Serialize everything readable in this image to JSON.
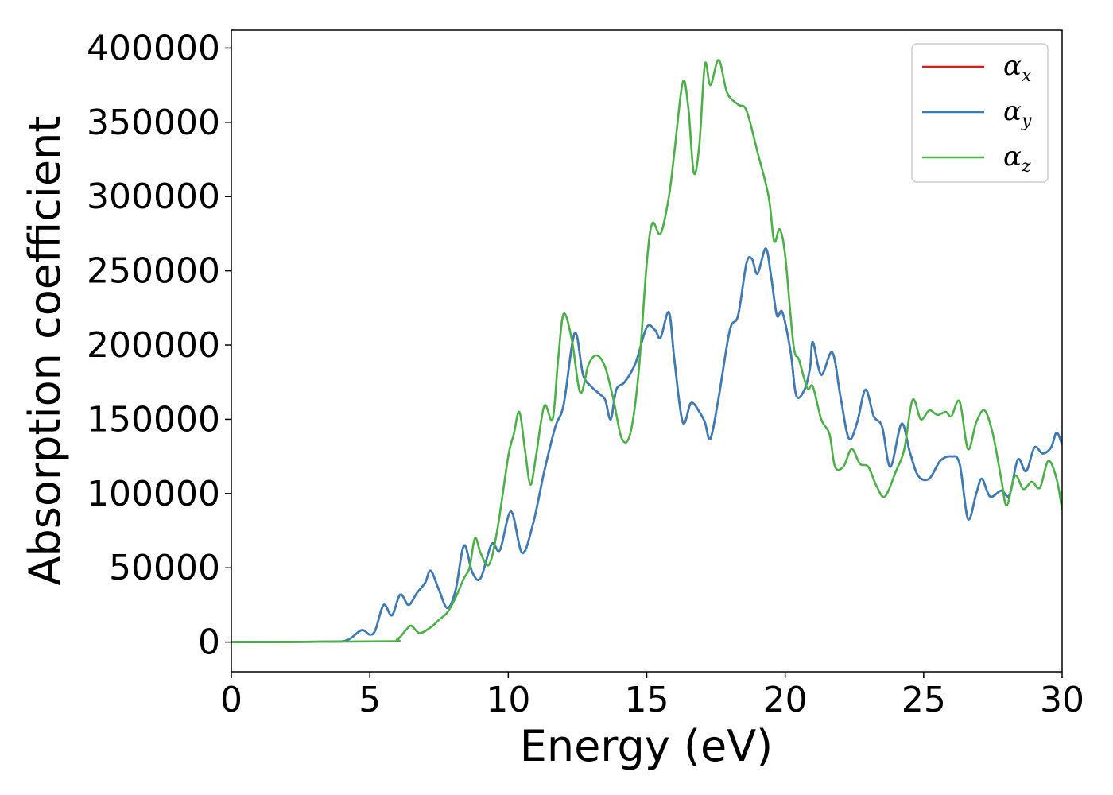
{
  "chart_data": {
    "type": "line",
    "title": "",
    "xlabel": "Energy (eV)",
    "ylabel": "Absorption coefficient",
    "xlim": [
      0,
      30
    ],
    "ylim": [
      -20000,
      412000
    ],
    "xticks": [
      0,
      5,
      10,
      15,
      20,
      25,
      30
    ],
    "yticks": [
      0,
      50000,
      100000,
      150000,
      200000,
      250000,
      300000,
      350000,
      400000
    ],
    "grid": false,
    "legend_position": "top-right",
    "series": [
      {
        "name": "α_x",
        "label_base": "α",
        "label_sub": "x",
        "color": "#e41a1c",
        "points": [
          [
            0,
            0
          ],
          [
            3.5,
            300
          ],
          [
            4.2,
            1500
          ],
          [
            4.7,
            8000
          ],
          [
            5.0,
            5000
          ],
          [
            5.2,
            8000
          ],
          [
            5.5,
            25000
          ],
          [
            5.8,
            18000
          ],
          [
            6.1,
            32000
          ],
          [
            6.4,
            25000
          ],
          [
            6.7,
            33000
          ],
          [
            7.0,
            40000
          ],
          [
            7.2,
            48000
          ],
          [
            7.5,
            35000
          ],
          [
            7.8,
            23000
          ],
          [
            8.1,
            35000
          ],
          [
            8.4,
            65000
          ],
          [
            8.7,
            47000
          ],
          [
            9.0,
            43000
          ],
          [
            9.4,
            66000
          ],
          [
            9.7,
            62000
          ],
          [
            10.1,
            88000
          ],
          [
            10.5,
            60000
          ],
          [
            10.9,
            80000
          ],
          [
            11.3,
            115000
          ],
          [
            11.7,
            145000
          ],
          [
            12.0,
            160000
          ],
          [
            12.4,
            208000
          ],
          [
            12.7,
            180000
          ],
          [
            13.0,
            172000
          ],
          [
            13.3,
            167000
          ],
          [
            13.5,
            163000
          ],
          [
            13.7,
            150000
          ],
          [
            13.9,
            170000
          ],
          [
            14.2,
            175000
          ],
          [
            14.6,
            188000
          ],
          [
            15.0,
            212000
          ],
          [
            15.3,
            210000
          ],
          [
            15.5,
            205000
          ],
          [
            15.8,
            222000
          ],
          [
            16.0,
            190000
          ],
          [
            16.3,
            148000
          ],
          [
            16.6,
            161000
          ],
          [
            16.9,
            155000
          ],
          [
            17.1,
            148000
          ],
          [
            17.3,
            137000
          ],
          [
            17.6,
            165000
          ],
          [
            18.0,
            210000
          ],
          [
            18.3,
            220000
          ],
          [
            18.6,
            255000
          ],
          [
            18.8,
            258000
          ],
          [
            19.0,
            248000
          ],
          [
            19.3,
            265000
          ],
          [
            19.5,
            245000
          ],
          [
            19.7,
            220000
          ],
          [
            19.9,
            222000
          ],
          [
            20.2,
            195000
          ],
          [
            20.4,
            166000
          ],
          [
            20.7,
            170000
          ],
          [
            20.9,
            185000
          ],
          [
            21.0,
            202000
          ],
          [
            21.3,
            180000
          ],
          [
            21.7,
            195000
          ],
          [
            22.0,
            165000
          ],
          [
            22.3,
            137000
          ],
          [
            22.6,
            148000
          ],
          [
            22.9,
            170000
          ],
          [
            23.2,
            152000
          ],
          [
            23.5,
            145000
          ],
          [
            23.8,
            118000
          ],
          [
            24.2,
            147000
          ],
          [
            24.5,
            128000
          ],
          [
            24.8,
            112000
          ],
          [
            25.2,
            110000
          ],
          [
            25.6,
            122000
          ],
          [
            26.0,
            125000
          ],
          [
            26.3,
            120000
          ],
          [
            26.6,
            83000
          ],
          [
            26.9,
            100000
          ],
          [
            27.1,
            110000
          ],
          [
            27.4,
            98000
          ],
          [
            27.8,
            102000
          ],
          [
            28.1,
            99000
          ],
          [
            28.4,
            123000
          ],
          [
            28.7,
            115000
          ],
          [
            29.0,
            131000
          ],
          [
            29.3,
            127000
          ],
          [
            29.6,
            131000
          ],
          [
            29.8,
            141000
          ],
          [
            30.0,
            133000
          ]
        ]
      },
      {
        "name": "α_y",
        "label_base": "α",
        "label_sub": "y",
        "color": "#377eb8",
        "points": [
          [
            0,
            0
          ],
          [
            3.5,
            300
          ],
          [
            4.2,
            1500
          ],
          [
            4.7,
            8000
          ],
          [
            5.0,
            5000
          ],
          [
            5.2,
            8000
          ],
          [
            5.5,
            25000
          ],
          [
            5.8,
            18000
          ],
          [
            6.1,
            32000
          ],
          [
            6.4,
            25000
          ],
          [
            6.7,
            33000
          ],
          [
            7.0,
            40000
          ],
          [
            7.2,
            48000
          ],
          [
            7.5,
            35000
          ],
          [
            7.8,
            23000
          ],
          [
            8.1,
            35000
          ],
          [
            8.4,
            65000
          ],
          [
            8.7,
            47000
          ],
          [
            9.0,
            43000
          ],
          [
            9.4,
            66000
          ],
          [
            9.7,
            62000
          ],
          [
            10.1,
            88000
          ],
          [
            10.5,
            60000
          ],
          [
            10.9,
            80000
          ],
          [
            11.3,
            115000
          ],
          [
            11.7,
            145000
          ],
          [
            12.0,
            160000
          ],
          [
            12.4,
            208000
          ],
          [
            12.7,
            180000
          ],
          [
            13.0,
            172000
          ],
          [
            13.3,
            167000
          ],
          [
            13.5,
            163000
          ],
          [
            13.7,
            150000
          ],
          [
            13.9,
            170000
          ],
          [
            14.2,
            175000
          ],
          [
            14.6,
            188000
          ],
          [
            15.0,
            212000
          ],
          [
            15.3,
            210000
          ],
          [
            15.5,
            205000
          ],
          [
            15.8,
            222000
          ],
          [
            16.0,
            190000
          ],
          [
            16.3,
            148000
          ],
          [
            16.6,
            161000
          ],
          [
            16.9,
            155000
          ],
          [
            17.1,
            148000
          ],
          [
            17.3,
            137000
          ],
          [
            17.6,
            165000
          ],
          [
            18.0,
            210000
          ],
          [
            18.3,
            220000
          ],
          [
            18.6,
            255000
          ],
          [
            18.8,
            258000
          ],
          [
            19.0,
            248000
          ],
          [
            19.3,
            265000
          ],
          [
            19.5,
            245000
          ],
          [
            19.7,
            220000
          ],
          [
            19.9,
            222000
          ],
          [
            20.2,
            195000
          ],
          [
            20.4,
            166000
          ],
          [
            20.7,
            170000
          ],
          [
            20.9,
            185000
          ],
          [
            21.0,
            202000
          ],
          [
            21.3,
            180000
          ],
          [
            21.7,
            195000
          ],
          [
            22.0,
            165000
          ],
          [
            22.3,
            137000
          ],
          [
            22.6,
            148000
          ],
          [
            22.9,
            170000
          ],
          [
            23.2,
            152000
          ],
          [
            23.5,
            145000
          ],
          [
            23.8,
            118000
          ],
          [
            24.2,
            147000
          ],
          [
            24.5,
            128000
          ],
          [
            24.8,
            112000
          ],
          [
            25.2,
            110000
          ],
          [
            25.6,
            122000
          ],
          [
            26.0,
            125000
          ],
          [
            26.3,
            120000
          ],
          [
            26.6,
            83000
          ],
          [
            26.9,
            100000
          ],
          [
            27.1,
            110000
          ],
          [
            27.4,
            98000
          ],
          [
            27.8,
            102000
          ],
          [
            28.1,
            99000
          ],
          [
            28.4,
            123000
          ],
          [
            28.7,
            115000
          ],
          [
            29.0,
            131000
          ],
          [
            29.3,
            127000
          ],
          [
            29.6,
            131000
          ],
          [
            29.8,
            141000
          ],
          [
            30.0,
            133000
          ]
        ]
      },
      {
        "name": "α_z",
        "label_base": "α",
        "label_sub": "z",
        "color": "#4daf4a",
        "points": [
          [
            0,
            0
          ],
          [
            5.5,
            500
          ],
          [
            6.0,
            2000
          ],
          [
            6.3,
            8000
          ],
          [
            6.5,
            11000
          ],
          [
            6.8,
            6000
          ],
          [
            7.2,
            10000
          ],
          [
            7.5,
            15000
          ],
          [
            7.8,
            20000
          ],
          [
            8.1,
            30000
          ],
          [
            8.4,
            43000
          ],
          [
            8.6,
            50000
          ],
          [
            8.8,
            70000
          ],
          [
            9.0,
            60000
          ],
          [
            9.3,
            52000
          ],
          [
            9.6,
            75000
          ],
          [
            10.0,
            125000
          ],
          [
            10.2,
            140000
          ],
          [
            10.4,
            155000
          ],
          [
            10.6,
            130000
          ],
          [
            10.8,
            106000
          ],
          [
            11.0,
            125000
          ],
          [
            11.3,
            159000
          ],
          [
            11.6,
            150000
          ],
          [
            11.8,
            190000
          ],
          [
            12.0,
            221000
          ],
          [
            12.3,
            203000
          ],
          [
            12.6,
            168000
          ],
          [
            12.9,
            187000
          ],
          [
            13.2,
            193000
          ],
          [
            13.5,
            185000
          ],
          [
            13.8,
            163000
          ],
          [
            14.1,
            137000
          ],
          [
            14.4,
            140000
          ],
          [
            14.7,
            180000
          ],
          [
            15.0,
            255000
          ],
          [
            15.2,
            282000
          ],
          [
            15.5,
            275000
          ],
          [
            15.8,
            300000
          ],
          [
            16.0,
            330000
          ],
          [
            16.3,
            377000
          ],
          [
            16.5,
            360000
          ],
          [
            16.7,
            316000
          ],
          [
            16.9,
            335000
          ],
          [
            17.1,
            389000
          ],
          [
            17.3,
            375000
          ],
          [
            17.6,
            392000
          ],
          [
            17.9,
            370000
          ],
          [
            18.3,
            362000
          ],
          [
            18.6,
            358000
          ],
          [
            19.0,
            330000
          ],
          [
            19.4,
            300000
          ],
          [
            19.6,
            270000
          ],
          [
            19.8,
            278000
          ],
          [
            20.0,
            260000
          ],
          [
            20.3,
            200000
          ],
          [
            20.5,
            190000
          ],
          [
            20.8,
            171000
          ],
          [
            21.0,
            172000
          ],
          [
            21.3,
            150000
          ],
          [
            21.6,
            140000
          ],
          [
            21.8,
            118000
          ],
          [
            22.1,
            118000
          ],
          [
            22.4,
            130000
          ],
          [
            22.7,
            120000
          ],
          [
            23.0,
            118000
          ],
          [
            23.3,
            105000
          ],
          [
            23.6,
            98000
          ],
          [
            24.0,
            115000
          ],
          [
            24.3,
            130000
          ],
          [
            24.6,
            163000
          ],
          [
            24.9,
            150000
          ],
          [
            25.2,
            156000
          ],
          [
            25.5,
            153000
          ],
          [
            25.8,
            155000
          ],
          [
            26.0,
            152000
          ],
          [
            26.3,
            162000
          ],
          [
            26.6,
            130000
          ],
          [
            26.9,
            148000
          ],
          [
            27.2,
            156000
          ],
          [
            27.5,
            140000
          ],
          [
            27.8,
            110000
          ],
          [
            28.0,
            92000
          ],
          [
            28.3,
            112000
          ],
          [
            28.6,
            103000
          ],
          [
            28.9,
            108000
          ],
          [
            29.2,
            104000
          ],
          [
            29.5,
            122000
          ],
          [
            29.8,
            110000
          ],
          [
            30.0,
            89000
          ]
        ]
      }
    ]
  }
}
